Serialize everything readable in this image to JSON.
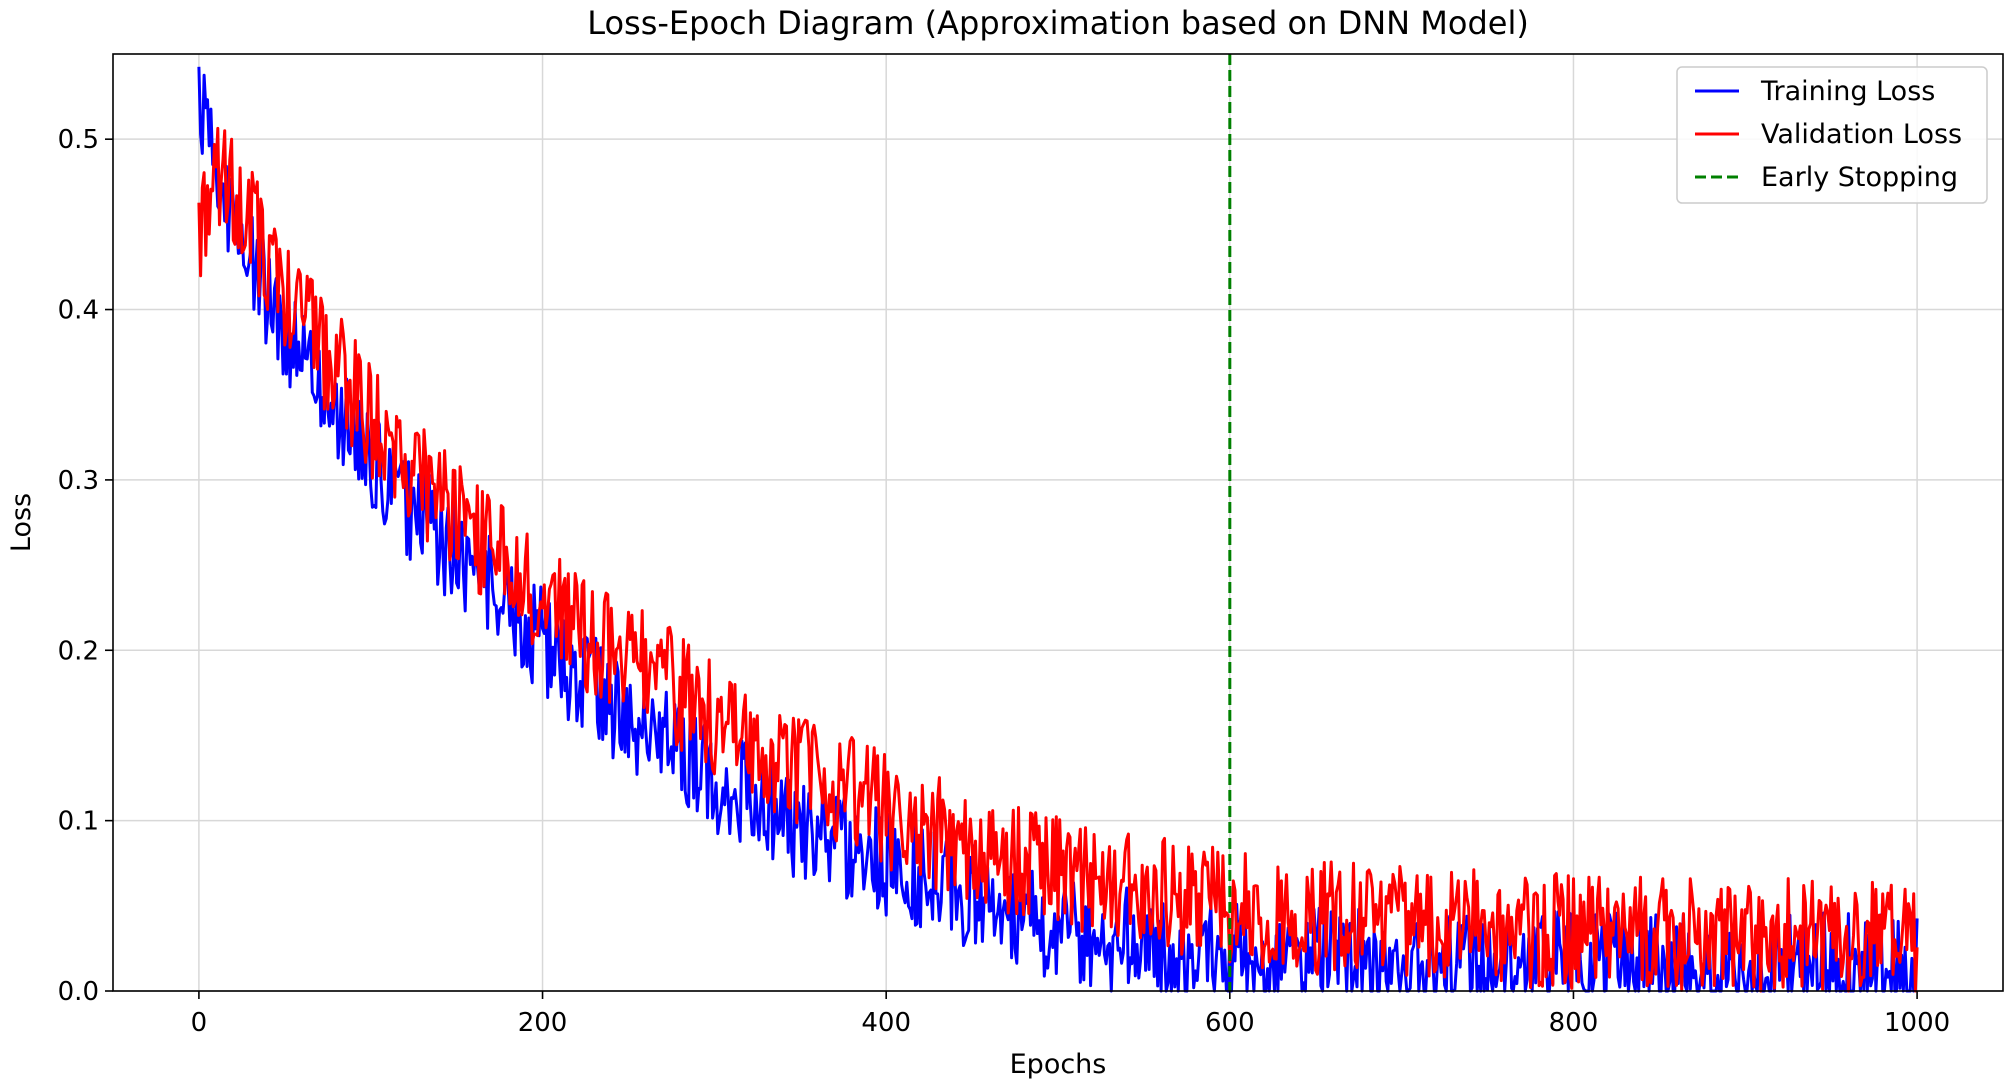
{
  "chart_data": {
    "type": "line",
    "title": "Loss-Epoch Diagram (Approximation based on DNN Model)",
    "xlabel": "Epochs",
    "ylabel": "Loss",
    "xlim": [
      -50,
      1050
    ],
    "ylim": [
      0.0,
      0.55
    ],
    "xticks": [
      0,
      200,
      400,
      600,
      800,
      1000
    ],
    "xtick_labels": [
      "0",
      "200",
      "400",
      "600",
      "800",
      "1000"
    ],
    "yticks": [
      0.0,
      0.1,
      0.2,
      0.3,
      0.4,
      0.5
    ],
    "ytick_labels": [
      "0.0",
      "0.1",
      "0.2",
      "0.3",
      "0.4",
      "0.5"
    ],
    "grid": true,
    "legend_position": "top-right",
    "series": [
      {
        "name": "Training Loss",
        "color": "#0000ff",
        "x": [
          0,
          10,
          20,
          30,
          40,
          50,
          60,
          70,
          80,
          90,
          100,
          120,
          140,
          160,
          180,
          200,
          225,
          250,
          275,
          300,
          325,
          350,
          375,
          400,
          425,
          450,
          475,
          500,
          525,
          550,
          575,
          600,
          625,
          650,
          675,
          700,
          750,
          800,
          850,
          900,
          950,
          1000
        ],
        "y": [
          0.53,
          0.48,
          0.45,
          0.43,
          0.41,
          0.39,
          0.37,
          0.355,
          0.34,
          0.325,
          0.31,
          0.285,
          0.265,
          0.245,
          0.225,
          0.205,
          0.18,
          0.16,
          0.145,
          0.125,
          0.11,
          0.095,
          0.085,
          0.075,
          0.065,
          0.055,
          0.045,
          0.038,
          0.032,
          0.027,
          0.023,
          0.02,
          0.018,
          0.017,
          0.016,
          0.015,
          0.015,
          0.015,
          0.014,
          0.014,
          0.014,
          0.014
        ]
      },
      {
        "name": "Validation Loss",
        "color": "#ff0000",
        "x": [
          0,
          10,
          20,
          30,
          40,
          50,
          60,
          70,
          80,
          90,
          100,
          120,
          140,
          160,
          180,
          200,
          225,
          250,
          275,
          300,
          325,
          350,
          375,
          400,
          425,
          450,
          475,
          500,
          525,
          550,
          575,
          600,
          625,
          650,
          675,
          700,
          750,
          800,
          850,
          900,
          950,
          1000
        ],
        "y": [
          0.45,
          0.48,
          0.465,
          0.45,
          0.43,
          0.41,
          0.395,
          0.38,
          0.365,
          0.35,
          0.335,
          0.31,
          0.29,
          0.27,
          0.25,
          0.23,
          0.21,
          0.195,
          0.18,
          0.16,
          0.145,
          0.13,
          0.12,
          0.105,
          0.095,
          0.085,
          0.077,
          0.07,
          0.063,
          0.058,
          0.053,
          0.049,
          0.046,
          0.043,
          0.041,
          0.039,
          0.037,
          0.035,
          0.034,
          0.033,
          0.032,
          0.031
        ]
      }
    ],
    "annotations": [
      {
        "type": "vline",
        "x": 600,
        "name": "Early Stopping",
        "color": "#008000",
        "style": "dashed"
      }
    ]
  }
}
